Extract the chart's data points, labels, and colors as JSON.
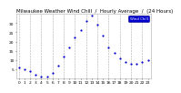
{
  "title": "Milwaukee Weather Wind Chill  /  Hourly Average  /  (24 Hours)",
  "hours": [
    0,
    1,
    2,
    3,
    4,
    5,
    6,
    7,
    8,
    9,
    10,
    11,
    12,
    13,
    14,
    15,
    16,
    17,
    18,
    19,
    20,
    21,
    22,
    23
  ],
  "wind_chill": [
    6,
    5,
    4,
    2,
    1,
    1,
    3,
    7,
    12,
    17,
    22,
    26,
    31,
    34,
    29,
    23,
    17,
    14,
    11,
    9,
    8,
    8,
    9,
    10
  ],
  "dot_color": "#0000cc",
  "bg_color": "#ffffff",
  "plot_bg": "#ffffff",
  "grid_color": "#aaaaaa",
  "text_color": "#000000",
  "legend_facecolor": "#0000cc",
  "legend_label": "Wind Chill",
  "ylim": [
    0,
    35
  ],
  "ytick_values": [
    5,
    10,
    15,
    20,
    25,
    30
  ],
  "xlim": [
    -0.5,
    23.5
  ],
  "title_fontsize": 4.0,
  "tick_fontsize": 3.2,
  "dot_size": 2.5,
  "grid_linewidth": 0.4,
  "grid_hours": [
    0,
    2,
    4,
    6,
    8,
    10,
    12,
    14,
    16,
    18,
    20,
    22
  ]
}
